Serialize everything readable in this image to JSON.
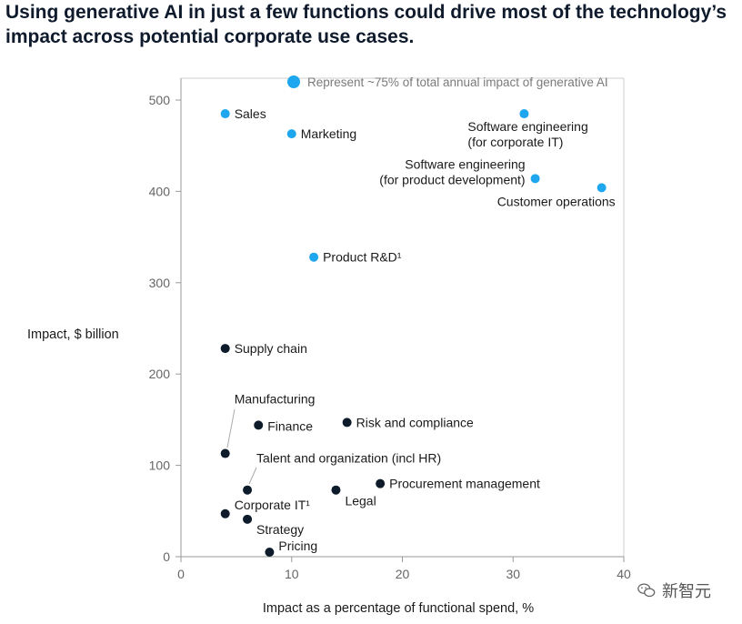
{
  "title": "Using generative AI in just a few functions could drive most of the technology’s impact across potential corporate use cases.",
  "watermark": "新智元",
  "colors": {
    "highlight": "#1ea7ee",
    "other": "#0d1b2a",
    "axis": "#9a9a9a",
    "frame": "#cfcfcf"
  },
  "chart_data": {
    "type": "scatter",
    "xlabel": "Impact as a percentage of functional spend, %",
    "ylabel": "Impact, $ billion",
    "xlim": [
      0,
      40
    ],
    "ylim": [
      0,
      500
    ],
    "xticks": [
      0,
      10,
      20,
      30,
      40
    ],
    "yticks": [
      0,
      100,
      200,
      300,
      400,
      500
    ],
    "grid": false,
    "legend": {
      "label": "Represent ~75% of total annual impact of generative AI",
      "placement": "top"
    },
    "series": [
      {
        "name": "Represent ~75% of total annual impact of generative AI",
        "color": "#1ea7ee",
        "points": [
          {
            "label": "Sales",
            "x": 4,
            "y": 485
          },
          {
            "label": "Marketing",
            "x": 10,
            "y": 463
          },
          {
            "label": "Software engineering\n(for corporate IT)",
            "x": 31,
            "y": 485
          },
          {
            "label": "Software engineering\n(for product development)",
            "x": 32,
            "y": 414
          },
          {
            "label": "Customer operations",
            "x": 38,
            "y": 404
          },
          {
            "label": "Product R&D¹",
            "x": 12,
            "y": 328
          }
        ]
      },
      {
        "color": "#0d1b2a",
        "points": [
          {
            "label": "Supply chain",
            "x": 4,
            "y": 228
          },
          {
            "label": "Manufacturing",
            "x": 4,
            "y": 113
          },
          {
            "label": "Finance",
            "x": 7,
            "y": 144
          },
          {
            "label": "Risk and compliance",
            "x": 15,
            "y": 147
          },
          {
            "label": "Talent and organization (incl HR)",
            "x": 6,
            "y": 73
          },
          {
            "label": "Procurement management",
            "x": 18,
            "y": 80
          },
          {
            "label": "Legal",
            "x": 14,
            "y": 73
          },
          {
            "label": "Corporate IT¹",
            "x": 4,
            "y": 47
          },
          {
            "label": "Strategy",
            "x": 6,
            "y": 41
          },
          {
            "label": "Pricing",
            "x": 8,
            "y": 5
          }
        ]
      }
    ]
  }
}
